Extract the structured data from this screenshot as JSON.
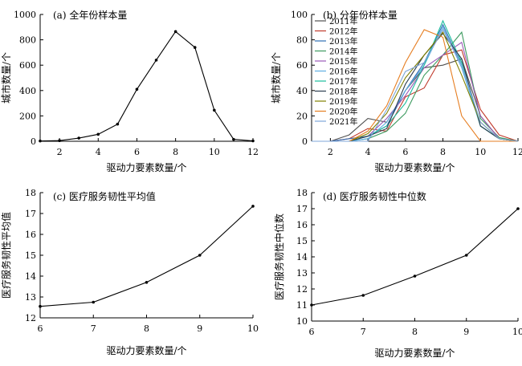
{
  "chart_data": [
    {
      "type": "line",
      "panel": "a",
      "title": "(a) 全年份样本量",
      "xlabel": "驱动力要素数量/个",
      "ylabel": "城市数量/个",
      "xlim": [
        1,
        12
      ],
      "ylim": [
        0,
        1000
      ],
      "xticks": [
        2,
        4,
        6,
        8,
        10,
        12
      ],
      "yticks": [
        0,
        200,
        400,
        600,
        800,
        1000
      ],
      "series": [
        {
          "x": [
            1,
            2,
            3,
            4,
            5,
            6,
            7,
            8,
            9,
            10,
            11,
            12
          ],
          "values": [
            2,
            5,
            25,
            55,
            135,
            410,
            640,
            865,
            740,
            245,
            15,
            3
          ]
        }
      ],
      "markers": true
    },
    {
      "type": "line",
      "panel": "b",
      "title": "(b) 分年份样本量",
      "xlabel": "驱动力要素数量/个",
      "ylabel": "城市数量/个",
      "xlim": [
        1,
        12
      ],
      "ylim": [
        0,
        100
      ],
      "xticks": [
        2,
        4,
        6,
        8,
        10,
        12
      ],
      "yticks": [
        0,
        20,
        40,
        60,
        80,
        100
      ],
      "legend": "top-left",
      "x": [
        1,
        2,
        3,
        4,
        5,
        6,
        7,
        8,
        9,
        10,
        11,
        12
      ],
      "series": [
        {
          "name": "2011年",
          "color": "#505050",
          "values": [
            0,
            0,
            5,
            18,
            15,
            40,
            58,
            60,
            65,
            20,
            2,
            0
          ]
        },
        {
          "name": "2012年",
          "color": "#c0392b",
          "values": [
            0,
            0,
            2,
            10,
            8,
            35,
            42,
            68,
            72,
            25,
            5,
            0
          ]
        },
        {
          "name": "2013年",
          "color": "#2e6db4",
          "values": [
            0,
            0,
            2,
            4,
            12,
            40,
            62,
            92,
            60,
            15,
            2,
            0
          ]
        },
        {
          "name": "2014年",
          "color": "#3c9a5f",
          "values": [
            0,
            0,
            0,
            2,
            8,
            22,
            52,
            68,
            86,
            18,
            3,
            0
          ]
        },
        {
          "name": "2015年",
          "color": "#9b59b6",
          "values": [
            0,
            0,
            0,
            4,
            18,
            36,
            58,
            68,
            78,
            20,
            2,
            0
          ]
        },
        {
          "name": "2016年",
          "color": "#5dade2",
          "values": [
            0,
            0,
            0,
            2,
            15,
            40,
            60,
            90,
            58,
            12,
            2,
            0
          ]
        },
        {
          "name": "2017年",
          "color": "#1abc9c",
          "values": [
            0,
            0,
            0,
            4,
            12,
            30,
            60,
            95,
            62,
            12,
            2,
            0
          ]
        },
        {
          "name": "2018年",
          "color": "#2c3e50",
          "values": [
            0,
            0,
            0,
            4,
            10,
            45,
            68,
            85,
            65,
            12,
            2,
            0
          ]
        },
        {
          "name": "2019年",
          "color": "#808000",
          "values": [
            0,
            0,
            0,
            6,
            22,
            50,
            68,
            86,
            52,
            15,
            2,
            0
          ]
        },
        {
          "name": "2020年",
          "color": "#e67e22",
          "values": [
            0,
            0,
            0,
            8,
            28,
            62,
            88,
            82,
            20,
            0,
            0,
            0
          ]
        },
        {
          "name": "2021年",
          "color": "#7fa7d9",
          "values": [
            0,
            0,
            0,
            0,
            25,
            55,
            62,
            88,
            60,
            15,
            2,
            0
          ]
        }
      ]
    },
    {
      "type": "line",
      "panel": "c",
      "title": "(c) 医疗服务韧性平均值",
      "xlabel": "驱动力要素数量/个",
      "ylabel": "医疗服务韧性平均值",
      "xlim": [
        6,
        10
      ],
      "ylim": [
        12,
        18
      ],
      "xticks": [
        6,
        7,
        8,
        9,
        10
      ],
      "yticks": [
        12,
        13,
        14,
        15,
        16,
        17,
        18
      ],
      "series": [
        {
          "x": [
            6,
            7,
            8,
            9,
            10
          ],
          "values": [
            12.55,
            12.75,
            13.7,
            15.0,
            17.35
          ]
        }
      ],
      "markers": true
    },
    {
      "type": "line",
      "panel": "d",
      "title": "(d) 医疗服务韧性中位数",
      "xlabel": "驱动力要素数量/个",
      "ylabel": "医疗服务韧性中位数",
      "xlim": [
        6,
        10
      ],
      "ylim": [
        10,
        18
      ],
      "xticks": [
        6,
        7,
        8,
        9,
        10
      ],
      "yticks": [
        10,
        11,
        12,
        13,
        14,
        15,
        16,
        17,
        18
      ],
      "series": [
        {
          "x": [
            6,
            7,
            8,
            9,
            10
          ],
          "values": [
            11.0,
            11.6,
            12.8,
            14.1,
            17.0
          ]
        }
      ],
      "markers": true
    }
  ]
}
